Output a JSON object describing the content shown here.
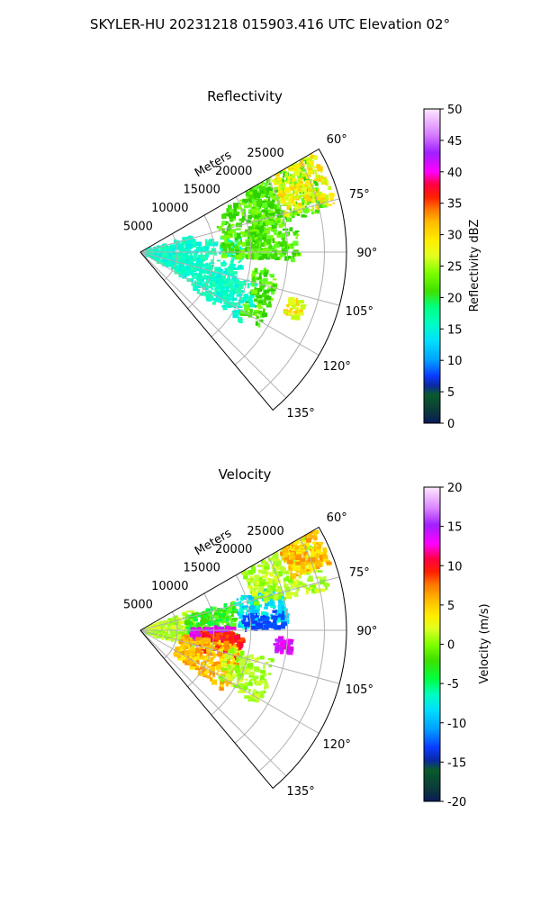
{
  "suptitle": "SKYLER-HU  20231218  015903.416 UTC Elevation 02°",
  "chart_data": [
    {
      "type": "polar_sector",
      "title": "Reflectivity",
      "radial_label": "Meters",
      "r_ticks": [
        "5000",
        "10000",
        "15000",
        "20000",
        "25000"
      ],
      "theta_ticks": [
        "60°",
        "75°",
        "90°",
        "105°",
        "120°",
        "135°"
      ],
      "theta_range_deg": [
        60,
        140
      ],
      "r_range": [
        0,
        28000
      ],
      "colorbar": {
        "label": "Reflectivity dBZ",
        "range": [
          0,
          50
        ],
        "ticks": [
          "0",
          "5",
          "10",
          "15",
          "20",
          "25",
          "30",
          "35",
          "40",
          "45",
          "50"
        ]
      }
    },
    {
      "type": "polar_sector",
      "title": "Velocity",
      "radial_label": "Meters",
      "r_ticks": [
        "5000",
        "10000",
        "15000",
        "20000",
        "25000"
      ],
      "theta_ticks": [
        "60°",
        "75°",
        "90°",
        "105°",
        "120°",
        "135°"
      ],
      "theta_range_deg": [
        60,
        140
      ],
      "r_range": [
        0,
        28000
      ],
      "colorbar": {
        "label": "Velocity (m/s)",
        "range": [
          -20,
          20
        ],
        "ticks": [
          "-20",
          "-15",
          "-10",
          "-5",
          "0",
          "5",
          "10",
          "15",
          "20"
        ]
      }
    }
  ]
}
